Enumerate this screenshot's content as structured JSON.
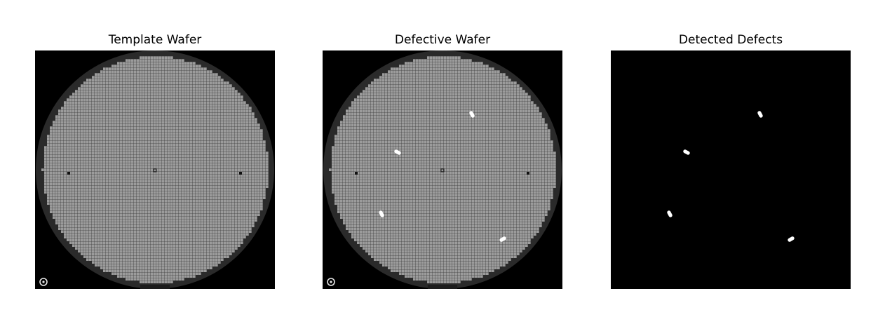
{
  "figure": {
    "panels": [
      {
        "title": "Template Wafer",
        "kind": "wafer",
        "defects": []
      },
      {
        "title": "Defective Wafer",
        "kind": "wafer",
        "defects": [
          {
            "cx": 213,
            "cy": 91,
            "angle": 62
          },
          {
            "cx": 107,
            "cy": 145,
            "angle": 28
          },
          {
            "cx": 84,
            "cy": 233,
            "angle": 62
          },
          {
            "cx": 257,
            "cy": 269,
            "angle": -30
          }
        ]
      },
      {
        "title": "Detected Defects",
        "kind": "mask",
        "defects": [
          {
            "cx": 213,
            "cy": 91,
            "angle": 62
          },
          {
            "cx": 108,
            "cy": 145,
            "angle": 28
          },
          {
            "cx": 84,
            "cy": 233,
            "angle": 62
          },
          {
            "cx": 257,
            "cy": 269,
            "angle": -30
          }
        ]
      }
    ],
    "colors": {
      "background": "#000000",
      "wafer_ring": "#2a2a2a",
      "die_fill": "#9c9c9c",
      "grid_line": "#3c3c3c",
      "defect": "#ffffff"
    }
  }
}
